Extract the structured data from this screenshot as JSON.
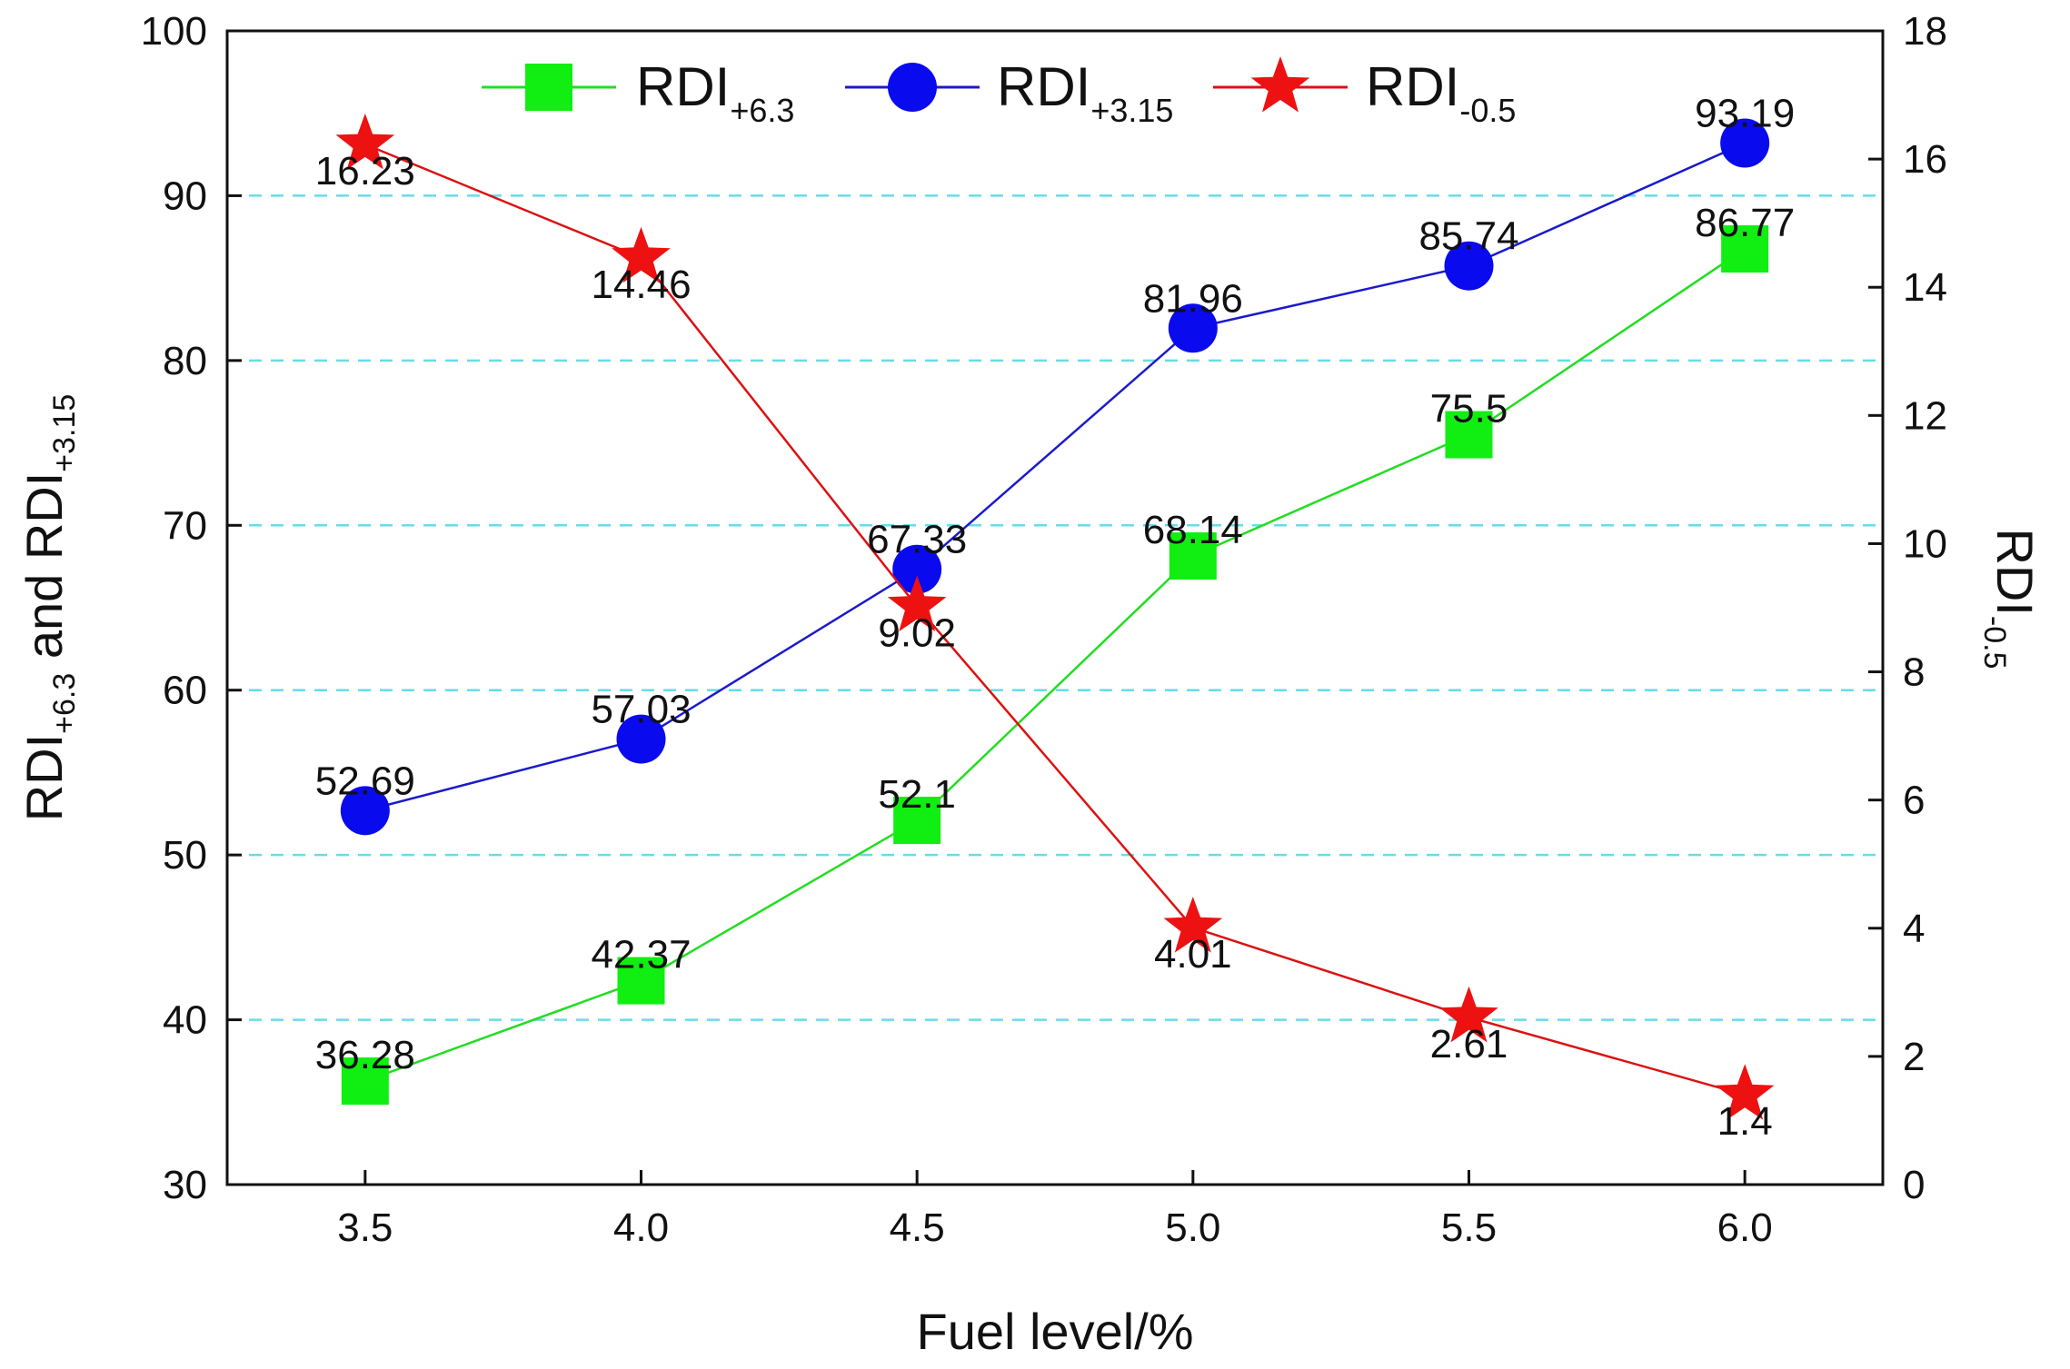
{
  "chart_data": {
    "type": "line",
    "x": [
      3.5,
      4.0,
      4.5,
      5.0,
      5.5,
      6.0
    ],
    "x_tick_labels": [
      "3.5",
      "4.0",
      "4.5",
      "5.0",
      "5.5",
      "6.0"
    ],
    "xlabel": "Fuel level/%",
    "xlim": [
      3.25,
      6.25
    ],
    "ylabel_left": {
      "parts": [
        "RDI",
        "+6.3",
        " and RDI",
        "+3.15"
      ]
    },
    "ylabel_right": {
      "parts": [
        "RDI",
        "-0.5"
      ]
    },
    "ylim_left": [
      30,
      100
    ],
    "ylim_right": [
      0,
      18
    ],
    "yticks_left": [
      30,
      40,
      50,
      60,
      70,
      80,
      90,
      100
    ],
    "yticks_right": [
      0,
      2,
      4,
      6,
      8,
      10,
      12,
      14,
      16,
      18
    ],
    "gridlines_left": [
      40,
      50,
      60,
      70,
      80,
      90
    ],
    "grid": "horizontal dashed",
    "legend_position": "top",
    "series": [
      {
        "name": "RDI",
        "name_sub": "+6.3",
        "axis": "left",
        "marker": "square",
        "color": "#22dd22",
        "marker_color": "#11ee11",
        "values": [
          36.28,
          42.37,
          52.1,
          68.14,
          75.5,
          86.77
        ],
        "labels": [
          "36.28",
          "42.37",
          "52.1",
          "68.14",
          "75.5",
          "86.77"
        ]
      },
      {
        "name": "RDI",
        "name_sub": "+3.15",
        "axis": "left",
        "marker": "circle",
        "color": "#1a1acc",
        "marker_color": "#0a0aee",
        "values": [
          52.69,
          57.03,
          67.33,
          81.96,
          85.74,
          93.19
        ],
        "labels": [
          "52.69",
          "57.03",
          "67.33",
          "81.96",
          "85.74",
          "93.19"
        ]
      },
      {
        "name": "RDI",
        "name_sub": "-0.5",
        "axis": "right",
        "marker": "star",
        "color": "#dd1111",
        "marker_color": "#ee1111",
        "values": [
          16.23,
          14.46,
          9.02,
          4.01,
          2.61,
          1.4
        ],
        "labels": [
          "16.23",
          "14.46",
          "9.02",
          "4.01",
          "2.61",
          "1.4"
        ]
      }
    ]
  }
}
